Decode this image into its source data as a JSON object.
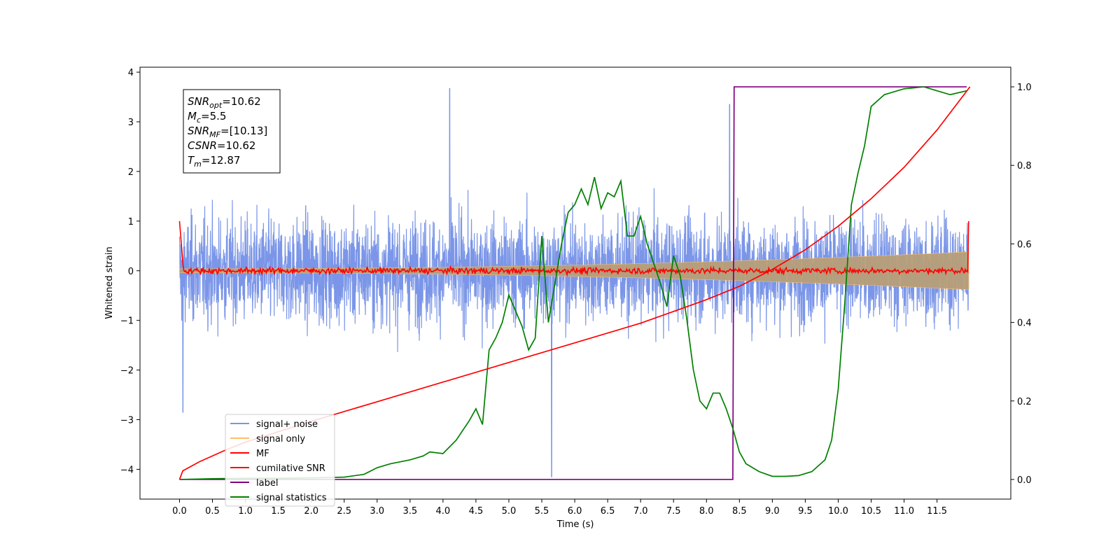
{
  "chart_data": {
    "type": "line",
    "xlabel": "Time (s)",
    "ylabel": "Whitened strain",
    "xlim": [
      -0.6,
      12.62
    ],
    "ylim": [
      -4.6,
      4.1
    ],
    "y2lim": [
      -0.05,
      1.05
    ],
    "x_ticks": [
      "0.0",
      "0.5",
      "1.0",
      "1.5",
      "2.0",
      "2.5",
      "3.0",
      "3.5",
      "4.0",
      "4.5",
      "5.0",
      "5.5",
      "6.0",
      "6.5",
      "7.0",
      "7.5",
      "8.0",
      "8.5",
      "9.0",
      "9.5",
      "10.0",
      "10.5",
      "11.0",
      "11.5"
    ],
    "y_ticks": [
      "4",
      "3",
      "2",
      "1",
      "0",
      "−1",
      "−2",
      "−3",
      "−4"
    ],
    "y2_ticks": [
      "0.0",
      "0.2",
      "0.4",
      "0.6",
      "0.8",
      "1.0"
    ],
    "grid": false,
    "legend_position": "lower-left",
    "info_box": {
      "lines": [
        {
          "sym": "SNR",
          "sub": "opt",
          "value": "=10.62"
        },
        {
          "sym": "M",
          "sub": "c",
          "value": "=5.5"
        },
        {
          "sym": "SNR",
          "sub": "MF",
          "value": "=[10.13]"
        },
        {
          "sym": "CSNR",
          "sub": "",
          "value": "=10.62"
        },
        {
          "sym": "T",
          "sub": "m",
          "value": "=12.87"
        }
      ]
    },
    "series": [
      {
        "name": "signal+ noise",
        "color": "#7b96e8",
        "axis": "left",
        "kind": "noise",
        "range": [
          -2.3,
          2.3
        ],
        "extremes": [
          [
            4.1,
            3.67
          ],
          [
            5.65,
            -4.15
          ],
          [
            8.35,
            3.35
          ],
          [
            0.05,
            -2.85
          ]
        ]
      },
      {
        "name": "signal only",
        "color": "#ffbd6b",
        "fill": "#b89f78",
        "axis": "left",
        "kind": "chirp",
        "amplitude_start": 0.04,
        "amplitude_end": 0.38
      },
      {
        "name": "MF",
        "color": "#ff0000",
        "axis": "left",
        "kind": "matched-filter",
        "start": 1.0,
        "end": 1.0
      },
      {
        "name": "cumilative SNR",
        "color": "#ff0000",
        "axis": "right",
        "x": [
          0.0,
          0.05,
          0.3,
          0.7,
          1.0,
          2.0,
          3.0,
          4.0,
          5.0,
          6.0,
          7.0,
          7.5,
          8.0,
          8.5,
          9.0,
          9.5,
          10.0,
          10.5,
          11.0,
          11.5,
          12.0
        ],
        "y": [
          0.0,
          0.022,
          0.045,
          0.075,
          0.095,
          0.148,
          0.198,
          0.248,
          0.298,
          0.348,
          0.398,
          0.428,
          0.458,
          0.492,
          0.535,
          0.585,
          0.645,
          0.715,
          0.795,
          0.89,
          1.0
        ]
      },
      {
        "name": "label",
        "color": "#800080",
        "axis": "right",
        "x": [
          0.0,
          8.4,
          8.42,
          11.95
        ],
        "y": [
          0.0,
          0.0,
          1.0,
          1.0
        ]
      },
      {
        "name": "signal statistics",
        "color": "#008000",
        "axis": "right",
        "x": [
          0.0,
          0.5,
          1.0,
          1.5,
          2.0,
          2.5,
          2.8,
          3.0,
          3.2,
          3.5,
          3.7,
          3.8,
          4.0,
          4.2,
          4.4,
          4.5,
          4.6,
          4.7,
          4.8,
          4.9,
          5.0,
          5.1,
          5.2,
          5.3,
          5.4,
          5.5,
          5.6,
          5.7,
          5.8,
          5.9,
          6.0,
          6.1,
          6.2,
          6.3,
          6.4,
          6.5,
          6.6,
          6.7,
          6.8,
          6.9,
          7.0,
          7.1,
          7.2,
          7.3,
          7.4,
          7.5,
          7.6,
          7.7,
          7.8,
          7.9,
          8.0,
          8.1,
          8.2,
          8.3,
          8.4,
          8.5,
          8.6,
          8.8,
          9.0,
          9.2,
          9.4,
          9.6,
          9.8,
          9.9,
          10.0,
          10.1,
          10.2,
          10.3,
          10.4,
          10.5,
          10.7,
          11.0,
          11.3,
          11.5,
          11.7,
          11.95
        ],
        "y": [
          0.0,
          0.002,
          0.003,
          0.003,
          0.004,
          0.006,
          0.013,
          0.03,
          0.04,
          0.05,
          0.06,
          0.07,
          0.066,
          0.1,
          0.15,
          0.18,
          0.14,
          0.33,
          0.36,
          0.4,
          0.47,
          0.43,
          0.39,
          0.33,
          0.36,
          0.62,
          0.4,
          0.5,
          0.6,
          0.68,
          0.7,
          0.74,
          0.7,
          0.77,
          0.69,
          0.73,
          0.72,
          0.76,
          0.62,
          0.62,
          0.67,
          0.6,
          0.55,
          0.5,
          0.44,
          0.57,
          0.52,
          0.41,
          0.28,
          0.2,
          0.18,
          0.22,
          0.22,
          0.18,
          0.13,
          0.07,
          0.04,
          0.02,
          0.008,
          0.008,
          0.01,
          0.02,
          0.05,
          0.1,
          0.23,
          0.45,
          0.7,
          0.78,
          0.85,
          0.95,
          0.98,
          0.995,
          1.0,
          0.99,
          0.98,
          0.99
        ]
      }
    ]
  }
}
